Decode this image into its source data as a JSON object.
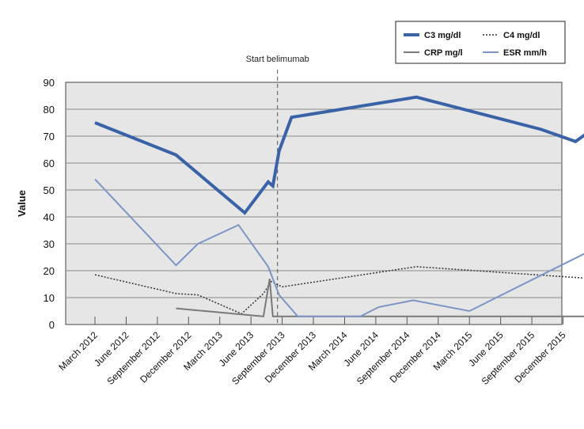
{
  "chart_data": {
    "type": "line",
    "ylabel": "Value",
    "ylim": [
      0,
      90
    ],
    "yticks": [
      0,
      10,
      20,
      30,
      40,
      50,
      60,
      70,
      80,
      90
    ],
    "grid": "horizontal",
    "legend_position": "top-right",
    "x_tick_labels": [
      "March 2012",
      "June 2012",
      "September 2012",
      "December 2012",
      "March 2013",
      "June 2013",
      "September 2013",
      "December 2013",
      "March 2014",
      "June 2014",
      "September 2014",
      "December 2014",
      "March 2015",
      "June 2015",
      "September 2015",
      "December 2015"
    ],
    "annotation": {
      "label": "Start belimumab",
      "x": 5.85
    },
    "series": [
      {
        "name": "C3 mg/dl",
        "color": "#3a62a7",
        "style": "solid-thick",
        "points": [
          [
            0,
            75
          ],
          [
            2.6,
            63
          ],
          [
            4.8,
            41.5
          ],
          [
            5.55,
            53
          ],
          [
            5.7,
            51.5
          ],
          [
            5.9,
            64.5
          ],
          [
            6.3,
            77
          ],
          [
            10.3,
            84.5
          ],
          [
            14.3,
            72.5
          ],
          [
            15.4,
            68
          ],
          [
            16,
            73
          ]
        ]
      },
      {
        "name": "C4 mg/dl",
        "color": "#333333",
        "style": "dotted",
        "points": [
          [
            0,
            18.5
          ],
          [
            2.6,
            11.5
          ],
          [
            3.3,
            11
          ],
          [
            4.7,
            4
          ],
          [
            5.4,
            11.5
          ],
          [
            5.65,
            16
          ],
          [
            6.0,
            14
          ],
          [
            10.3,
            21.5
          ],
          [
            16,
            17
          ]
        ]
      },
      {
        "name": "CRP mg/l",
        "color": "#7a7a7a",
        "style": "solid",
        "points": [
          [
            2.6,
            6
          ],
          [
            5.4,
            3
          ],
          [
            5.6,
            17
          ],
          [
            5.7,
            3
          ],
          [
            16,
            3
          ]
        ]
      },
      {
        "name": "ESR mm/h",
        "color": "#7c94c6",
        "style": "solid",
        "points": [
          [
            0,
            54
          ],
          [
            2.6,
            22
          ],
          [
            3.3,
            30
          ],
          [
            4.6,
            37
          ],
          [
            5.55,
            21.5
          ],
          [
            5.9,
            11
          ],
          [
            6.5,
            3
          ],
          [
            7.0,
            3
          ],
          [
            8.5,
            3
          ],
          [
            9.1,
            6.5
          ],
          [
            10.2,
            9
          ],
          [
            12.0,
            5
          ],
          [
            15.8,
            27
          ],
          [
            16,
            27
          ]
        ]
      }
    ]
  }
}
